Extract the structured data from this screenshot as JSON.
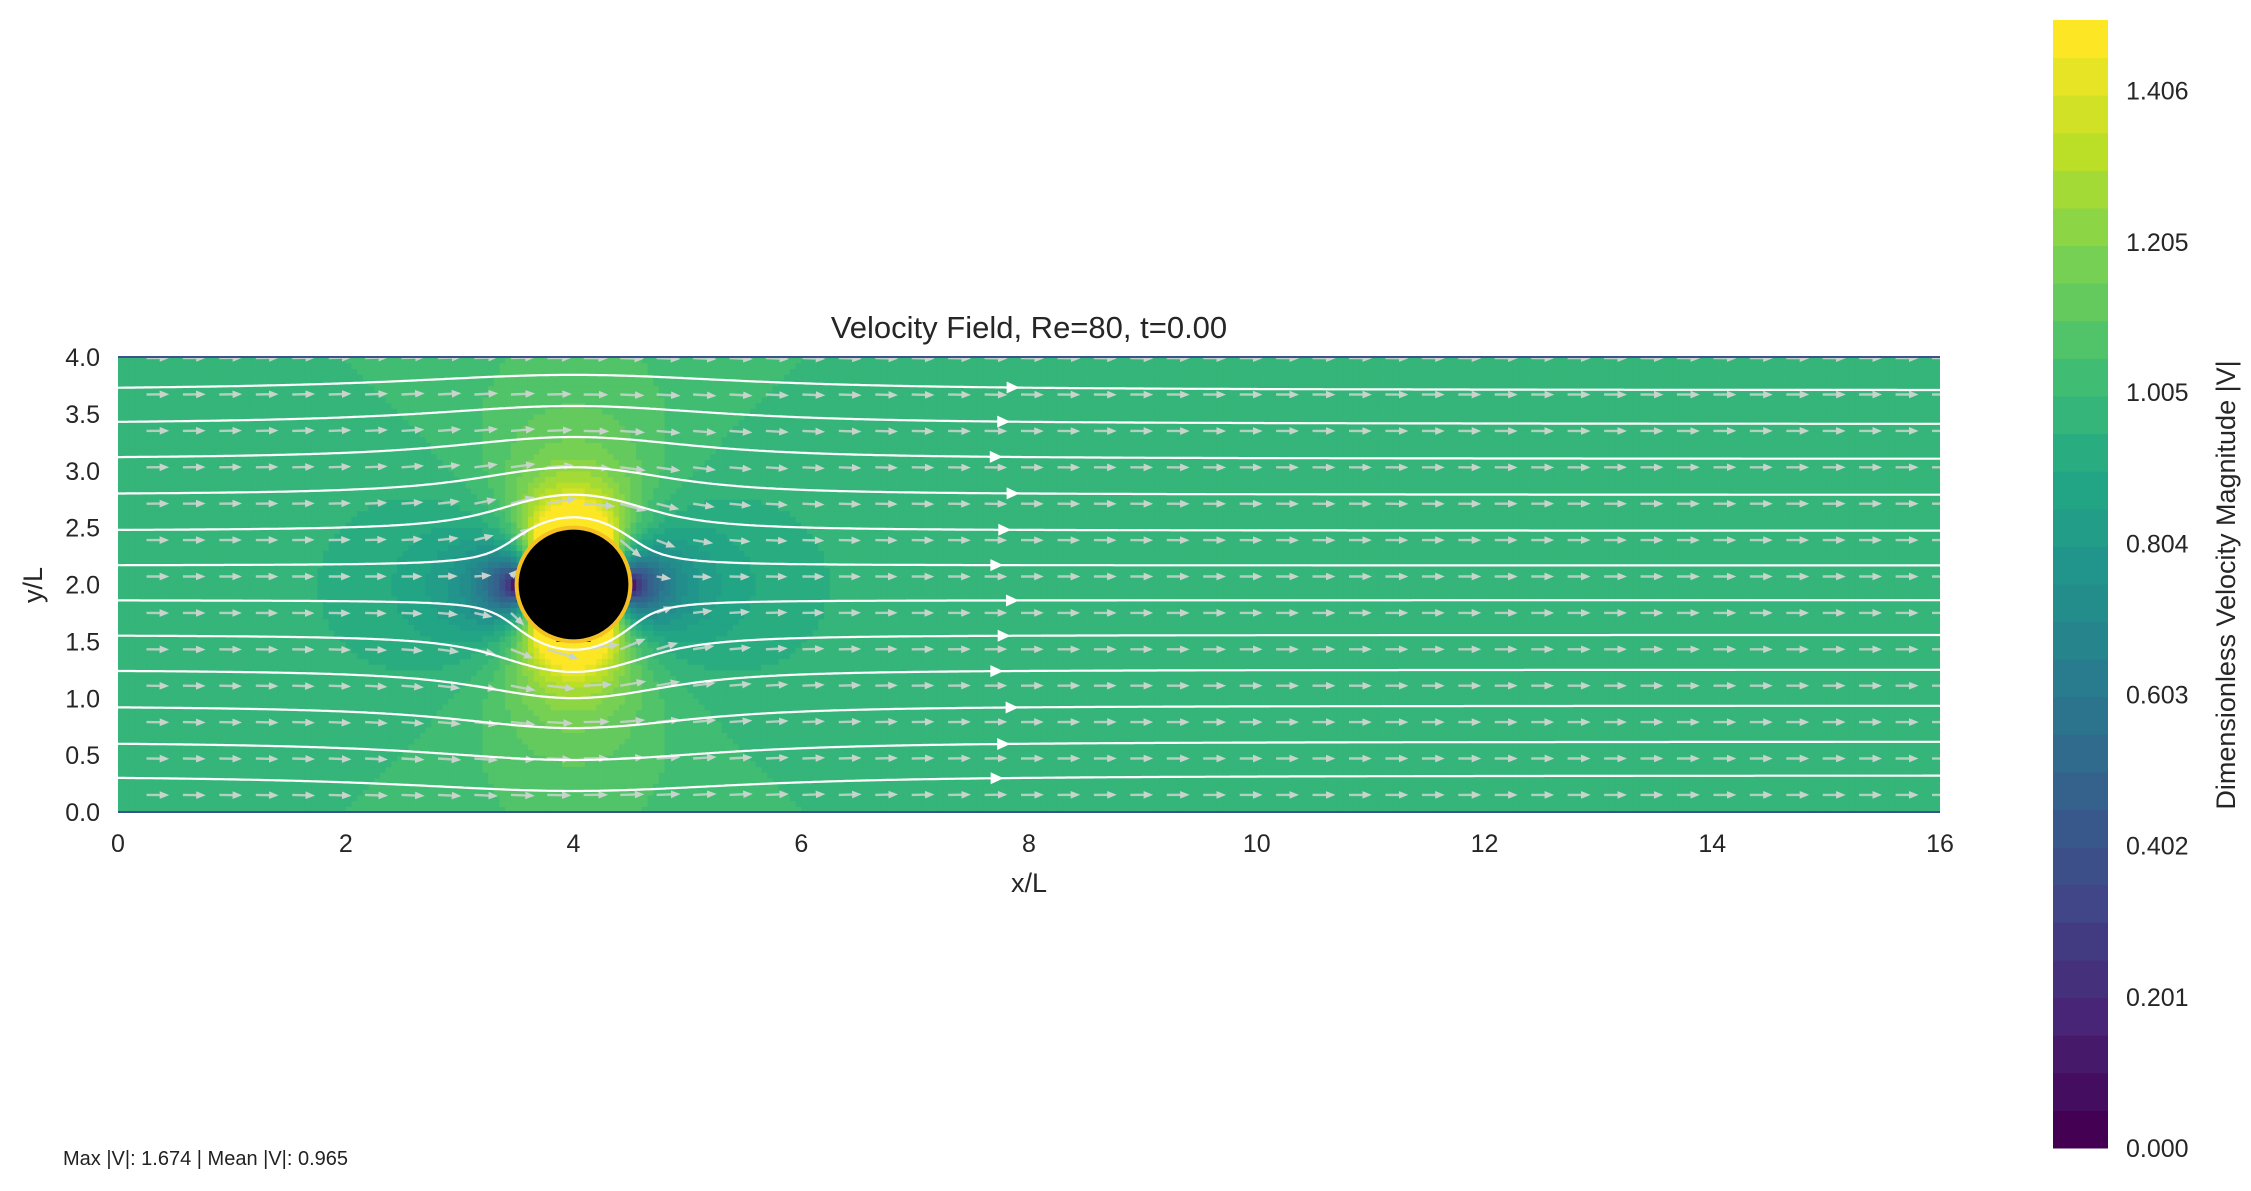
{
  "chart_data": {
    "type": "heatmap",
    "title": "Velocity Field, Re=80, t=0.00",
    "xlabel": "x/L",
    "ylabel": "y/L",
    "xlim": [
      0,
      16
    ],
    "ylim": [
      0,
      4
    ],
    "x_ticks": [
      "0",
      "2",
      "4",
      "6",
      "8",
      "10",
      "12",
      "14",
      "16"
    ],
    "y_ticks": [
      "0.0",
      "0.5",
      "1.0",
      "1.5",
      "2.0",
      "2.5",
      "3.0",
      "3.5",
      "4.0"
    ],
    "grid": false,
    "freestream_velocity": 1.0,
    "obstacle": {
      "shape": "circle",
      "center_x": 4,
      "center_y": 2,
      "radius": 0.5,
      "fill": "#000000",
      "edge": "#f5c022"
    },
    "colorbar": {
      "label": "Dimensionless Velocity Magnitude |V|",
      "min": 0.0,
      "max": 1.5,
      "ticks": [
        "0.000",
        "0.201",
        "0.402",
        "0.603",
        "0.804",
        "1.005",
        "1.205",
        "1.406"
      ],
      "colormap": "viridis",
      "levels": 30
    },
    "streamline_y_starts": [
      0.3,
      0.6,
      0.92,
      1.24,
      1.55,
      1.86,
      2.17,
      2.48,
      2.8,
      3.12,
      3.43,
      3.73
    ]
  },
  "footer": {
    "max_label": "Max |V|: 1.674",
    "separator": " | ",
    "mean_label": "Mean |V|: 0.965"
  },
  "colors": {
    "streamline": "#ffffff",
    "quiver": "#c8d3cc",
    "obstacle_edge": "#f5c022"
  }
}
